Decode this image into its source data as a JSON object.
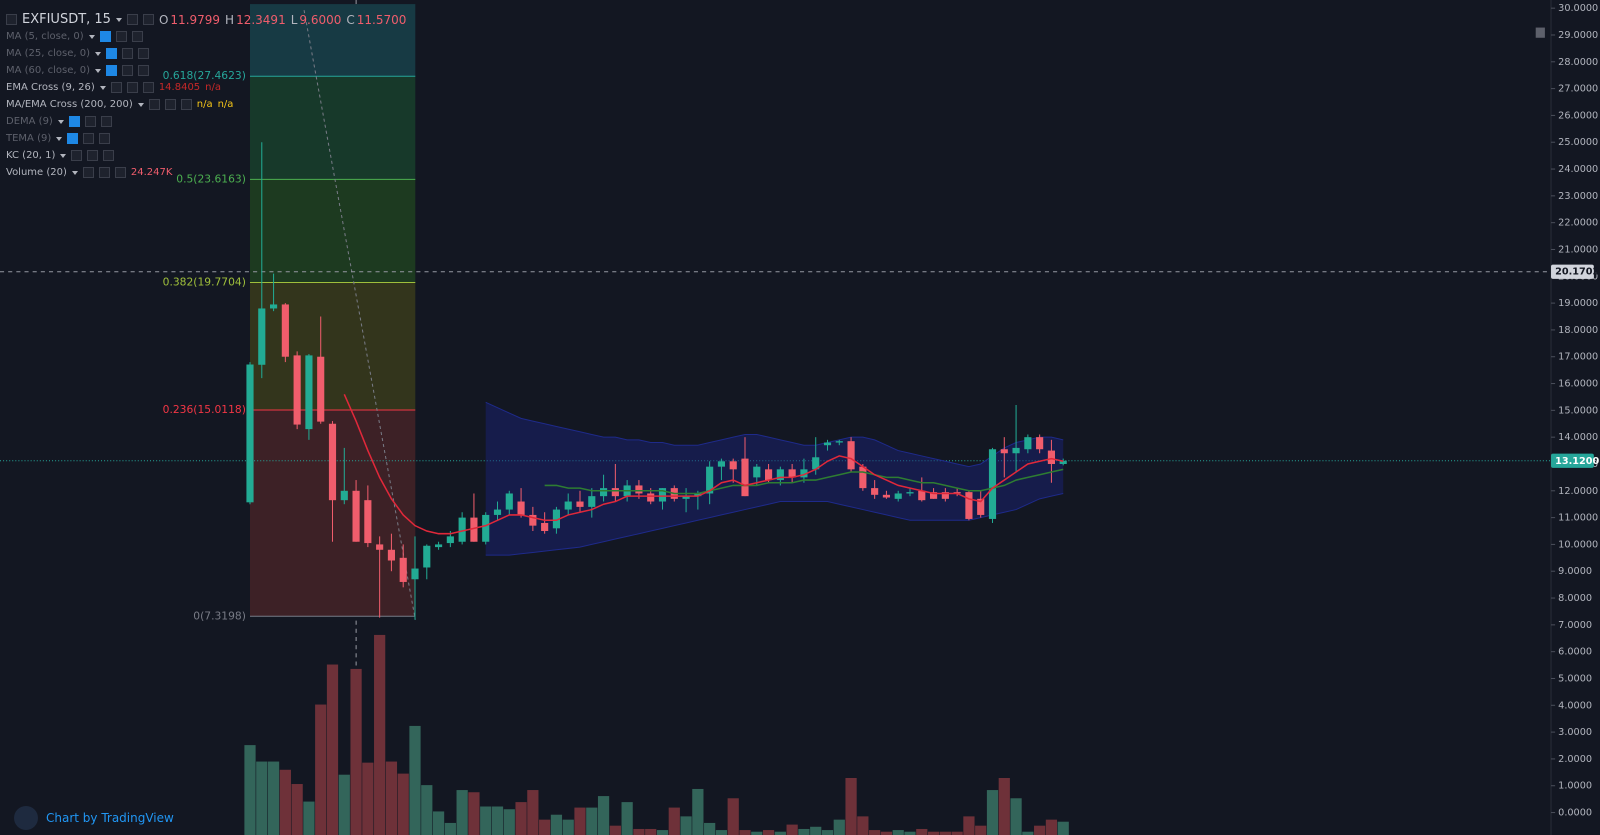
{
  "chart_data": {
    "type": "candlestick",
    "symbol": "EXFIUSDT, 15",
    "ohlc_header": [
      {
        "key": "O",
        "text": "11.9799"
      },
      {
        "key": "H",
        "text": "12.3491"
      },
      {
        "key": "L",
        "text": "9.6000"
      },
      {
        "key": "C",
        "text": "11.5700"
      }
    ],
    "indicators": [
      {
        "name": "MA (5, close, 0)",
        "values": [],
        "color": "#5d606b"
      },
      {
        "name": "MA (25, close, 0)",
        "values": [],
        "color": "#5d606b"
      },
      {
        "name": "MA (60, close, 0)",
        "values": [],
        "color": "#5d606b"
      },
      {
        "name": "EMA Cross (9, 26)",
        "values": [
          "14.8405",
          "n/a"
        ],
        "color": "#c62828"
      },
      {
        "name": "MA/EMA Cross (200, 200)",
        "values": [
          "n/a",
          "n/a"
        ],
        "color": "#f5c518"
      },
      {
        "name": "DEMA (9)",
        "values": [],
        "color": "#5d606b"
      },
      {
        "name": "TEMA (9)",
        "values": [],
        "color": "#5d606b"
      },
      {
        "name": "KC (20, 1)",
        "values": [],
        "color": "#1a237e"
      },
      {
        "name": "Volume (20)",
        "values": [
          "24.247K"
        ],
        "color": "#f05d6c"
      }
    ],
    "open": [
      11.57,
      16.7,
      18.8,
      18.95,
      17.05,
      14.3,
      17.0,
      14.5,
      11.65,
      12.0,
      11.65,
      10.0,
      9.8,
      9.5,
      8.7,
      9.14,
      9.9,
      10.05,
      10.1,
      11.0,
      10.1,
      11.1,
      11.3,
      11.6,
      11.1,
      10.8,
      10.6,
      11.3,
      11.6,
      11.4,
      11.8,
      12.1,
      11.8,
      12.2,
      11.9,
      11.6,
      12.1,
      11.7,
      11.8,
      11.9,
      12.9,
      13.1,
      13.2,
      12.5,
      12.8,
      12.4,
      12.8,
      12.5,
      12.8,
      13.7,
      13.8,
      13.85,
      12.9,
      12.1,
      11.85,
      11.7,
      11.9,
      12.0,
      11.95,
      11.95,
      11.95,
      11.95,
      11.7,
      10.95,
      13.55,
      13.4,
      13.55,
      14.0,
      13.5,
      13.0
    ],
    "high": [
      16.8,
      25.0,
      20.1,
      19.0,
      17.2,
      17.1,
      18.5,
      14.6,
      13.6,
      12.4,
      12.2,
      10.3,
      10.4,
      10.0,
      10.3,
      10.0,
      10.1,
      10.5,
      11.2,
      11.9,
      11.2,
      11.6,
      12.0,
      12.1,
      11.4,
      11.2,
      11.4,
      11.9,
      12.0,
      12.1,
      12.6,
      13.0,
      12.4,
      12.4,
      12.1,
      12.1,
      12.2,
      12.1,
      12.0,
      13.1,
      13.2,
      13.2,
      14.0,
      13.0,
      13.0,
      12.9,
      13.0,
      13.2,
      14.0,
      13.9,
      13.9,
      14.0,
      13.0,
      12.4,
      12.0,
      12.0,
      12.1,
      12.5,
      12.1,
      12.1,
      12.1,
      12.0,
      12.0,
      13.6,
      14.0,
      15.2,
      14.1,
      14.1,
      13.9,
      13.2
    ],
    "low": [
      11.5,
      16.2,
      18.7,
      16.8,
      14.3,
      13.9,
      14.5,
      10.1,
      11.5,
      10.1,
      9.9,
      7.27,
      9.0,
      8.4,
      7.19,
      8.7,
      9.8,
      9.9,
      10.0,
      10.1,
      10.0,
      10.9,
      11.1,
      11.0,
      10.5,
      10.4,
      10.4,
      11.1,
      11.2,
      11.0,
      11.6,
      11.6,
      11.6,
      11.7,
      11.5,
      11.3,
      11.6,
      11.2,
      11.3,
      11.5,
      12.4,
      12.3,
      11.8,
      12.2,
      12.3,
      12.2,
      12.3,
      12.3,
      12.6,
      13.5,
      13.7,
      12.7,
      12.0,
      11.7,
      11.7,
      11.6,
      11.8,
      11.6,
      11.7,
      11.6,
      11.8,
      10.9,
      11.0,
      10.8,
      12.5,
      12.7,
      13.4,
      13.4,
      12.3,
      12.95
    ],
    "close": [
      16.71,
      18.8,
      18.95,
      17.0,
      14.47,
      17.05,
      14.58,
      11.65,
      12.0,
      10.1,
      10.05,
      9.8,
      9.4,
      8.6,
      9.1,
      9.95,
      10.0,
      10.3,
      11.0,
      10.1,
      11.1,
      11.3,
      11.9,
      11.1,
      10.7,
      10.5,
      11.3,
      11.6,
      11.4,
      11.8,
      12.1,
      11.8,
      12.2,
      11.9,
      11.6,
      12.1,
      11.7,
      11.8,
      11.9,
      12.9,
      13.1,
      12.8,
      11.8,
      12.9,
      12.4,
      12.8,
      12.5,
      12.8,
      13.25,
      13.8,
      13.85,
      12.8,
      12.1,
      11.85,
      11.75,
      11.9,
      11.95,
      11.65,
      11.7,
      11.7,
      11.9,
      10.95,
      11.1,
      13.55,
      13.4,
      13.6,
      14.0,
      13.55,
      13.0,
      13.12
    ],
    "volume": [
      164,
      134,
      134,
      119,
      93,
      61,
      238,
      311,
      110,
      303,
      132,
      365,
      134,
      112,
      199,
      91,
      43,
      22,
      82,
      78,
      52,
      52,
      47,
      60,
      82,
      28,
      37,
      28,
      50,
      50,
      71,
      17,
      60,
      11,
      11,
      9,
      50,
      34,
      84,
      22,
      9,
      67,
      9,
      6,
      9,
      6,
      19,
      11,
      15,
      9,
      28,
      104,
      34,
      9,
      6,
      9,
      6,
      11,
      6,
      6,
      6,
      34,
      17,
      82,
      104,
      67,
      6,
      17,
      28,
      24.247
    ],
    "ema_fast": {
      "color": "#e0283a",
      "values": [
        null,
        null,
        null,
        null,
        null,
        null,
        null,
        null,
        15.6,
        14.6,
        13.5,
        12.5,
        11.7,
        11.1,
        10.7,
        10.5,
        10.4,
        10.4,
        10.5,
        10.6,
        10.7,
        10.9,
        11.1,
        11.1,
        11.0,
        10.9,
        10.9,
        11.1,
        11.2,
        11.3,
        11.5,
        11.6,
        11.8,
        11.8,
        11.8,
        11.8,
        11.8,
        11.8,
        11.8,
        12.0,
        12.3,
        12.4,
        12.2,
        12.3,
        12.4,
        12.5,
        12.5,
        12.6,
        12.8,
        13.1,
        13.3,
        13.2,
        12.9,
        12.6,
        12.4,
        12.2,
        12.1,
        12.0,
        11.9,
        11.9,
        11.9,
        11.7,
        11.6,
        12.1,
        12.4,
        12.7,
        13.0,
        13.1,
        13.2,
        13.1
      ]
    },
    "ema_slow": {
      "color": "#2e7d32",
      "values": [
        null,
        null,
        null,
        null,
        null,
        null,
        null,
        null,
        null,
        null,
        null,
        null,
        null,
        null,
        null,
        null,
        null,
        null,
        null,
        null,
        null,
        null,
        null,
        null,
        null,
        12.2,
        12.2,
        12.1,
        12.1,
        12.0,
        12.0,
        12.0,
        12.0,
        12.0,
        12.0,
        12.0,
        11.9,
        11.9,
        11.9,
        12.0,
        12.1,
        12.2,
        12.2,
        12.2,
        12.3,
        12.3,
        12.3,
        12.4,
        12.4,
        12.5,
        12.6,
        12.7,
        12.7,
        12.6,
        12.5,
        12.5,
        12.4,
        12.3,
        12.3,
        12.2,
        12.1,
        12.0,
        12.0,
        12.1,
        12.2,
        12.4,
        12.5,
        12.6,
        12.7,
        12.8
      ]
    },
    "kc_upper": {
      "color": "#1e2a8a",
      "values": [
        null,
        null,
        null,
        null,
        null,
        null,
        null,
        null,
        null,
        null,
        null,
        null,
        null,
        null,
        null,
        null,
        null,
        null,
        null,
        null,
        15.3,
        15.1,
        14.9,
        14.7,
        14.6,
        14.5,
        14.4,
        14.3,
        14.2,
        14.1,
        14.0,
        14.0,
        13.9,
        13.9,
        13.8,
        13.8,
        13.7,
        13.7,
        13.7,
        13.8,
        13.9,
        14.0,
        14.1,
        14.1,
        14.0,
        13.9,
        13.8,
        13.7,
        13.7,
        13.8,
        13.9,
        14.0,
        14.0,
        13.9,
        13.7,
        13.5,
        13.4,
        13.3,
        13.2,
        13.1,
        13.0,
        12.9,
        13.0,
        13.3,
        13.6,
        13.8,
        13.9,
        14.0,
        14.0,
        13.9
      ]
    },
    "kc_lower": {
      "color": "#1e2a8a",
      "values": [
        null,
        null,
        null,
        null,
        null,
        null,
        null,
        null,
        null,
        null,
        null,
        null,
        null,
        null,
        null,
        null,
        null,
        null,
        null,
        null,
        9.6,
        9.6,
        9.6,
        9.65,
        9.7,
        9.75,
        9.8,
        9.85,
        9.9,
        10.0,
        10.1,
        10.2,
        10.3,
        10.4,
        10.5,
        10.6,
        10.7,
        10.8,
        10.9,
        11.0,
        11.1,
        11.2,
        11.3,
        11.4,
        11.5,
        11.6,
        11.6,
        11.6,
        11.6,
        11.6,
        11.5,
        11.4,
        11.3,
        11.2,
        11.1,
        11.0,
        10.9,
        10.9,
        10.9,
        10.9,
        10.9,
        10.9,
        11.0,
        11.1,
        11.2,
        11.3,
        11.5,
        11.7,
        11.8,
        11.9
      ]
    },
    "up_color": "#22ab94",
    "down_color": "#f05d6c",
    "volume_up_color": "#33655a",
    "volume_down_color": "#6e3139",
    "fib": {
      "levels": [
        {
          "value": 7.3198,
          "label": "0(7.3198)",
          "color": "#787b86",
          "band": "#3d2126"
        },
        {
          "value": 15.0118,
          "label": "0.236(15.0118)",
          "color": "#f23645",
          "band": "#33351c"
        },
        {
          "value": 19.7704,
          "label": "0.382(19.7704)",
          "color": "#9fbf3b",
          "band": "#1d3a20"
        },
        {
          "value": 23.6163,
          "label": "0.5(23.6163)",
          "color": "#4caf50",
          "band": "#17392a"
        },
        {
          "value": 27.4623,
          "label": "0.618(27.4623)",
          "color": "#26a69a",
          "band": "#173a44"
        }
      ]
    },
    "ylim": [
      0,
      30
    ],
    "yticks": [
      {
        "value": 0,
        "label": "0.0000"
      },
      {
        "value": 1,
        "label": "1.0000"
      },
      {
        "value": 2,
        "label": "2.0000"
      },
      {
        "value": 3,
        "label": "3.0000"
      },
      {
        "value": 4,
        "label": "4.0000"
      },
      {
        "value": 5,
        "label": "5.0000"
      },
      {
        "value": 6,
        "label": "6.0000"
      },
      {
        "value": 7,
        "label": "7.0000"
      },
      {
        "value": 8,
        "label": "8.0000"
      },
      {
        "value": 9,
        "label": "9.0000"
      },
      {
        "value": 10,
        "label": "10.0000"
      },
      {
        "value": 11,
        "label": "11.0000"
      },
      {
        "value": 12,
        "label": "12.0000"
      },
      {
        "value": 13,
        "label": "13.0000"
      },
      {
        "value": 14,
        "label": "14.0000"
      },
      {
        "value": 15,
        "label": "15.0000"
      },
      {
        "value": 16,
        "label": "16.0000"
      },
      {
        "value": 17,
        "label": "17.0000"
      },
      {
        "value": 18,
        "label": "18.0000"
      },
      {
        "value": 19,
        "label": "19.0000"
      },
      {
        "value": 20,
        "label": "20.0000"
      },
      {
        "value": 21,
        "label": "21.0000"
      },
      {
        "value": 22,
        "label": "22.0000"
      },
      {
        "value": 23,
        "label": "23.0000"
      },
      {
        "value": 24,
        "label": "24.0000"
      },
      {
        "value": 25,
        "label": "25.0000"
      },
      {
        "value": 26,
        "label": "26.0000"
      },
      {
        "value": 27,
        "label": "27.0000"
      },
      {
        "value": 28,
        "label": "28.0000"
      },
      {
        "value": 29,
        "label": "29.0000"
      },
      {
        "value": 30,
        "label": "30.0000"
      }
    ],
    "last_price": {
      "value": 13.12,
      "label": "13.1200"
    },
    "crosshair_price": {
      "value": 20.1702,
      "label": "20.1702"
    },
    "watermark": "Chart by TradingView"
  }
}
